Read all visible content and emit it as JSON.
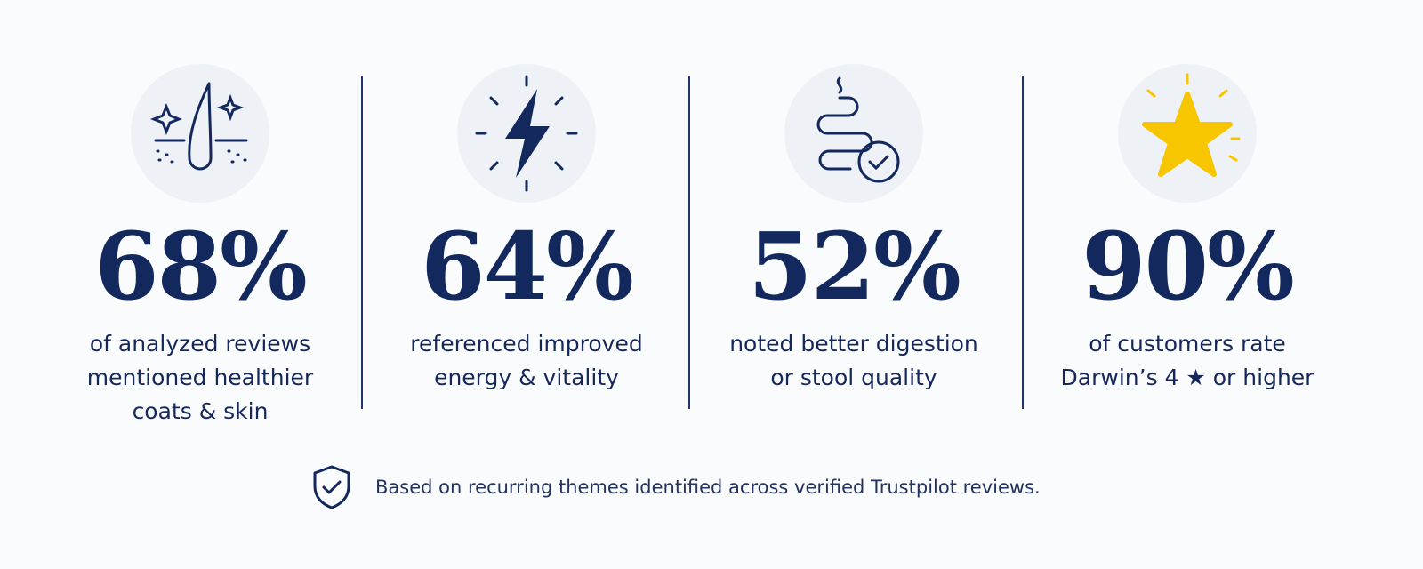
{
  "stats": [
    {
      "value": "68%",
      "lines": [
        "of analyzed reviews",
        "mentioned healthier",
        "coats & skin"
      ]
    },
    {
      "value": "64%",
      "lines": [
        "referenced improved",
        "energy & vitality"
      ]
    },
    {
      "value": "52%",
      "lines": [
        "noted better digestion",
        "or stool quality"
      ]
    },
    {
      "value": "90%",
      "lines": [
        "of customers rate",
        "Darwin’s 4 ★ or higher"
      ]
    }
  ],
  "footer": {
    "note": "Based on recurring themes identified across verified Trustpilot reviews."
  }
}
